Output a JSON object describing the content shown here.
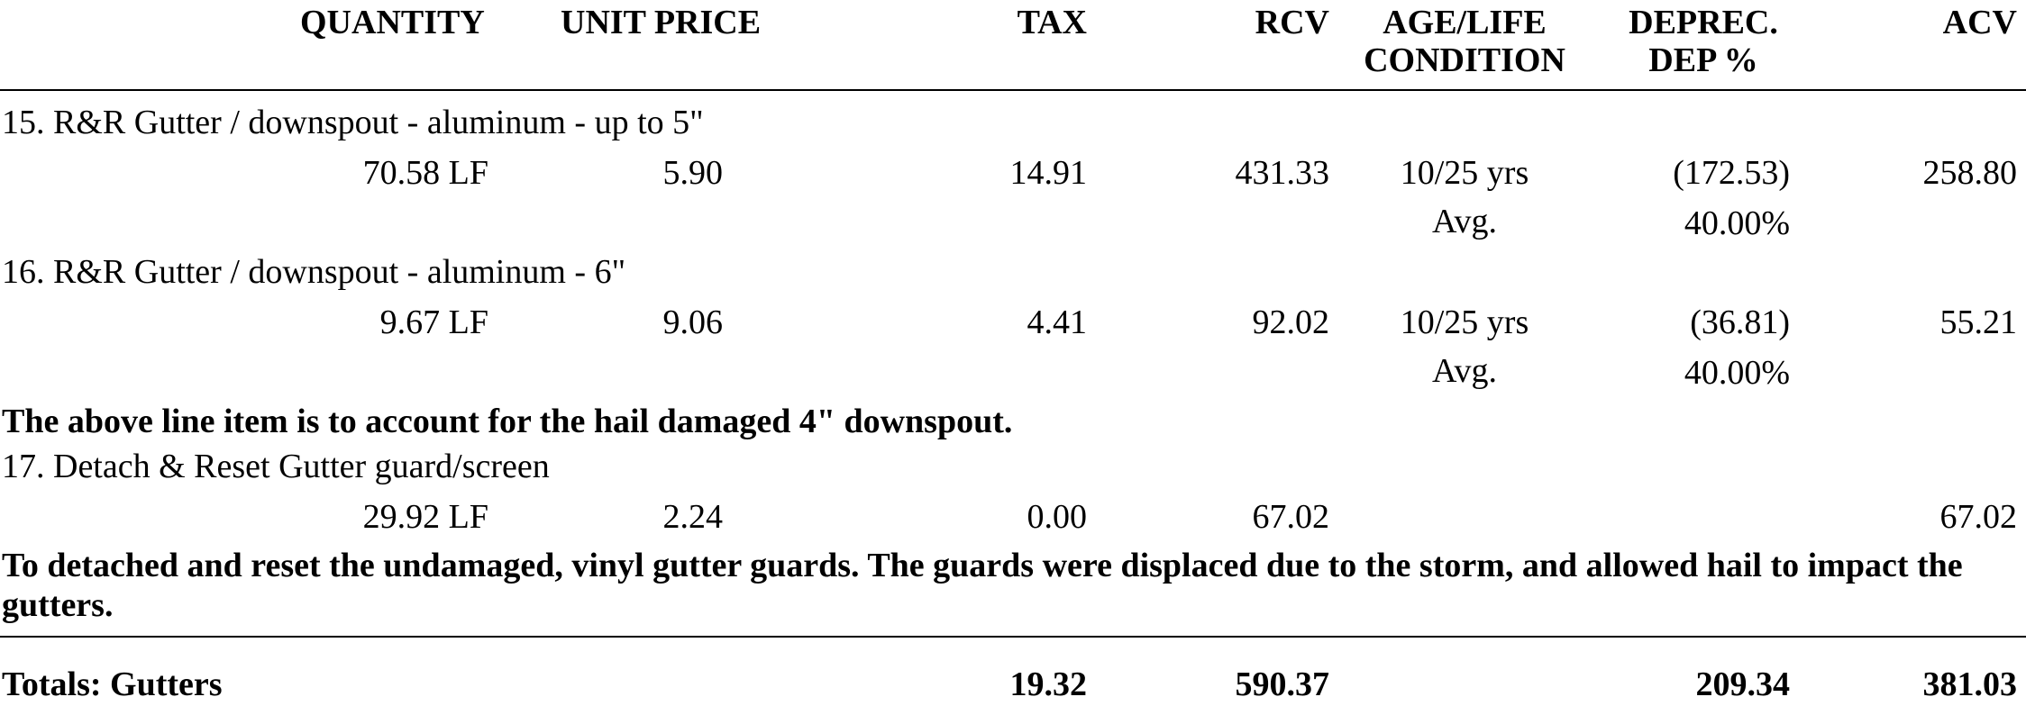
{
  "headers": {
    "quantity": "QUANTITY",
    "unit_price": "UNIT PRICE",
    "tax": "TAX",
    "rcv": "RCV",
    "age_life_1": "AGE/LIFE",
    "age_life_2": "CONDITION",
    "deprec_1": "DEPREC.",
    "deprec_2": "DEP %",
    "acv": "ACV"
  },
  "items": [
    {
      "description": "15.  R&R Gutter / downspout - aluminum - up to 5\"",
      "quantity": "70.58 LF",
      "unit_price": "5.90",
      "tax": "14.91",
      "rcv": "431.33",
      "age_life": "10/25 yrs",
      "condition": "Avg.",
      "deprec": "(172.53)",
      "dep_pct": "40.00%",
      "acv": "258.80"
    },
    {
      "description": "16.  R&R Gutter / downspout - aluminum - 6\"",
      "quantity": "9.67 LF",
      "unit_price": "9.06",
      "tax": "4.41",
      "rcv": "92.02",
      "age_life": "10/25 yrs",
      "condition": "Avg.",
      "deprec": "(36.81)",
      "dep_pct": "40.00%",
      "acv": "55.21"
    },
    {
      "description": "17.  Detach & Reset Gutter guard/screen",
      "quantity": "29.92 LF",
      "unit_price": "2.24",
      "tax": "0.00",
      "rcv": "67.02",
      "acv": "67.02"
    }
  ],
  "notes": {
    "note_16": "The above line item is to account for the hail damaged 4\" downspout.",
    "note_17": "To detached and reset the undamaged, vinyl gutter guards.  The guards were displaced due to the storm, and allowed hail to impact the gutters."
  },
  "totals": {
    "label": "Totals:  Gutters",
    "tax": "19.32",
    "rcv": "590.37",
    "deprec": "209.34",
    "acv": "381.03"
  }
}
